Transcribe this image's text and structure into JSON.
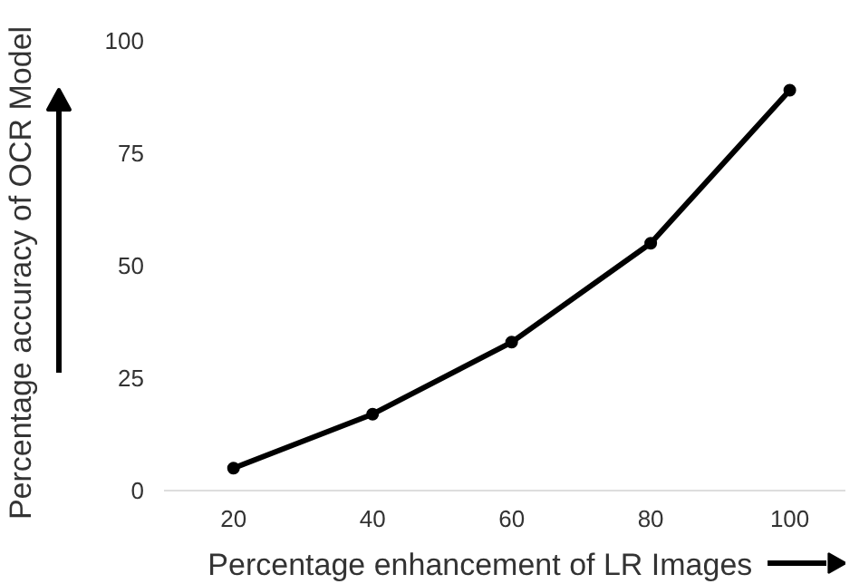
{
  "chart_data": {
    "type": "line",
    "xlabel": "Percentage enhancement of LR Images",
    "ylabel": "Percentage accuracy of OCR Model",
    "x": [
      20,
      40,
      60,
      80,
      100
    ],
    "values": [
      5,
      17,
      33,
      55,
      89
    ],
    "color": "#000000",
    "marker": "circle",
    "line_style": "solid",
    "xlim": [
      10,
      108
    ],
    "ylim": [
      0,
      100
    ],
    "xticks": [
      20,
      40,
      60,
      80,
      100
    ],
    "yticks": [
      0,
      25,
      50,
      75,
      100
    ],
    "grid": false
  }
}
